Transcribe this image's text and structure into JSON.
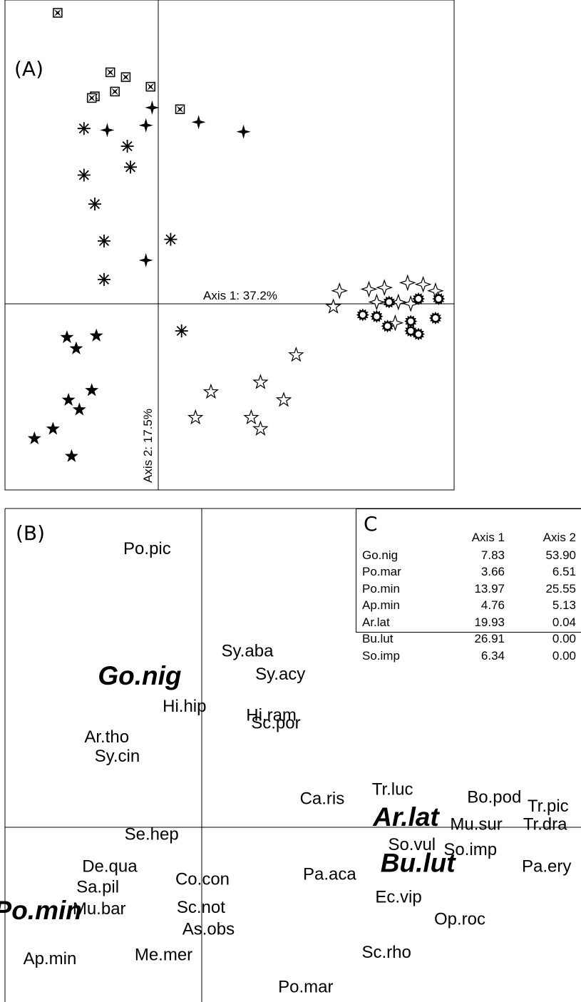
{
  "panel_a": {
    "label": "(A)",
    "axis1_label": "Axis 1: 37.2%",
    "axis2_label": "Axis 2: 17.5%"
  },
  "panel_b": {
    "label": "(B)"
  },
  "panel_c": {
    "label": "C",
    "col_headers": [
      "Axis 1",
      "Axis 2"
    ],
    "rows": [
      {
        "name": "Go.nig",
        "axis1": "7.83",
        "axis2": "53.90"
      },
      {
        "name": "Po.mar",
        "axis1": "3.66",
        "axis2": "6.51"
      },
      {
        "name": "Po.min",
        "axis1": "13.97",
        "axis2": "25.55"
      },
      {
        "name": "Ap.min",
        "axis1": "4.76",
        "axis2": "5.13"
      },
      {
        "name": "Ar.lat",
        "axis1": "19.93",
        "axis2": "0.04"
      },
      {
        "name": "Bu.lut",
        "axis1": "26.91",
        "axis2": "0.00"
      },
      {
        "name": "So.imp",
        "axis1": "6.34",
        "axis2": "0.00"
      }
    ]
  },
  "chart_data": [
    {
      "type": "scatter",
      "panel": "(A)",
      "xlabel": "Axis 1: 37.2%",
      "ylabel": "Axis 2: 17.5%",
      "xlim": [
        -1.0,
        1.9
      ],
      "ylim": [
        -1.2,
        1.85
      ],
      "grid": false,
      "series": [
        {
          "symbol": "cross-box",
          "points": [
            [
              -0.66,
              1.77
            ],
            [
              -0.32,
              1.4
            ],
            [
              -0.22,
              1.37
            ],
            [
              -0.42,
              1.25
            ],
            [
              -0.29,
              1.28
            ],
            [
              -0.44,
              1.24
            ],
            [
              -0.06,
              1.31
            ],
            [
              0.13,
              1.17
            ]
          ]
        },
        {
          "symbol": "four-point-star-filled",
          "points": [
            [
              -0.05,
              1.18
            ],
            [
              -0.09,
              1.07
            ],
            [
              -0.34,
              1.04
            ],
            [
              0.25,
              1.09
            ],
            [
              0.54,
              1.03
            ],
            [
              -0.09,
              0.23
            ]
          ]
        },
        {
          "symbol": "asterisk",
          "points": [
            [
              -0.49,
              1.05
            ],
            [
              -0.21,
              0.94
            ],
            [
              -0.19,
              0.81
            ],
            [
              -0.49,
              0.76
            ],
            [
              -0.42,
              0.58
            ],
            [
              -0.36,
              0.35
            ],
            [
              0.07,
              0.36
            ],
            [
              -0.36,
              0.11
            ],
            [
              0.14,
              -0.21
            ]
          ]
        },
        {
          "symbol": "five-point-star-filled",
          "points": [
            [
              -0.6,
              -0.25
            ],
            [
              -0.54,
              -0.32
            ],
            [
              -0.41,
              -0.24
            ],
            [
              -0.59,
              -0.64
            ],
            [
              -0.52,
              -0.7
            ],
            [
              -0.44,
              -0.58
            ],
            [
              -0.69,
              -0.82
            ],
            [
              -0.81,
              -0.88
            ],
            [
              -0.57,
              -0.99
            ]
          ]
        },
        {
          "symbol": "five-point-star-open",
          "points": [
            [
              1.12,
              -0.06
            ],
            [
              0.88,
              -0.36
            ],
            [
              0.65,
              -0.53
            ],
            [
              0.33,
              -0.59
            ],
            [
              0.23,
              -0.75
            ],
            [
              0.8,
              -0.64
            ],
            [
              0.59,
              -0.75
            ],
            [
              0.65,
              -0.82
            ]
          ]
        },
        {
          "symbol": "four-point-star-open",
          "points": [
            [
              1.16,
              0.04
            ],
            [
              1.35,
              0.05
            ],
            [
              1.45,
              0.06
            ],
            [
              1.6,
              0.09
            ],
            [
              1.7,
              0.08
            ],
            [
              1.78,
              0.04
            ],
            [
              1.4,
              -0.03
            ],
            [
              1.54,
              -0.03
            ],
            [
              1.62,
              -0.04
            ],
            [
              1.52,
              -0.16
            ]
          ]
        },
        {
          "symbol": "sun-ring",
          "points": [
            [
              1.48,
              -0.03
            ],
            [
              1.67,
              -0.01
            ],
            [
              1.8,
              -0.01
            ],
            [
              1.31,
              -0.11
            ],
            [
              1.4,
              -0.12
            ],
            [
              1.62,
              -0.15
            ],
            [
              1.78,
              -0.13
            ],
            [
              1.47,
              -0.18
            ],
            [
              1.62,
              -0.21
            ],
            [
              1.67,
              -0.23
            ]
          ]
        }
      ]
    },
    {
      "type": "scatter",
      "panel": "(B)",
      "xlim": [
        -1.3,
        2.55
      ],
      "ylim": [
        -1.35,
        2.5
      ],
      "grid": false,
      "points": [
        {
          "label": "Po.pic",
          "x": -0.35,
          "y": 2.18,
          "bold": false
        },
        {
          "label": "Sy.aba",
          "x": 0.32,
          "y": 1.38,
          "bold": false
        },
        {
          "label": "Sy.acy",
          "x": 0.54,
          "y": 1.2,
          "bold": false
        },
        {
          "label": "Go.nig",
          "x": -0.4,
          "y": 1.18,
          "bold": true
        },
        {
          "label": "Hi.hip",
          "x": -0.1,
          "y": 0.95,
          "bold": false
        },
        {
          "label": "Hi.ram",
          "x": 0.48,
          "y": 0.88,
          "bold": false
        },
        {
          "label": "Sc.por",
          "x": 0.51,
          "y": 0.82,
          "bold": false
        },
        {
          "label": "Ar.tho",
          "x": -0.62,
          "y": 0.71,
          "bold": false
        },
        {
          "label": "Sy.cin",
          "x": -0.55,
          "y": 0.56,
          "bold": false
        },
        {
          "label": "Ca.ris",
          "x": 0.82,
          "y": 0.23,
          "bold": false
        },
        {
          "label": "Tr.luc",
          "x": 1.29,
          "y": 0.3,
          "bold": false
        },
        {
          "label": "Bo.pod",
          "x": 1.97,
          "y": 0.24,
          "bold": false
        },
        {
          "label": "Tr.pic",
          "x": 2.33,
          "y": 0.17,
          "bold": false
        },
        {
          "label": "Ar.lat",
          "x": 1.38,
          "y": 0.08,
          "bold": true
        },
        {
          "label": "Mu.sur",
          "x": 1.85,
          "y": 0.03,
          "bold": false
        },
        {
          "label": "Tr.dra",
          "x": 2.31,
          "y": 0.03,
          "bold": false
        },
        {
          "label": "Se.hep",
          "x": -0.32,
          "y": -0.05,
          "bold": false
        },
        {
          "label": "So.vul",
          "x": 1.42,
          "y": -0.13,
          "bold": false
        },
        {
          "label": "So.imp",
          "x": 1.81,
          "y": -0.17,
          "bold": false
        },
        {
          "label": "Bu.lut",
          "x": 1.46,
          "y": -0.28,
          "bold": true
        },
        {
          "label": "Pa.ery",
          "x": 2.32,
          "y": -0.3,
          "bold": false
        },
        {
          "label": "De.qua",
          "x": -0.6,
          "y": -0.3,
          "bold": false
        },
        {
          "label": "Co.con",
          "x": 0.02,
          "y": -0.4,
          "bold": false
        },
        {
          "label": "Pa.aca",
          "x": 0.87,
          "y": -0.36,
          "bold": false
        },
        {
          "label": "Sa.pil",
          "x": -0.68,
          "y": -0.46,
          "bold": false
        },
        {
          "label": "Ec.vip",
          "x": 1.33,
          "y": -0.54,
          "bold": false
        },
        {
          "label": "Po.min",
          "x": -1.08,
          "y": -0.65,
          "bold": true
        },
        {
          "label": "Mu.bar",
          "x": -0.67,
          "y": -0.63,
          "bold": false
        },
        {
          "label": "Sc.not",
          "x": 0.01,
          "y": -0.62,
          "bold": false
        },
        {
          "label": "Op.roc",
          "x": 1.74,
          "y": -0.71,
          "bold": false
        },
        {
          "label": "As.obs",
          "x": 0.06,
          "y": -0.79,
          "bold": false
        },
        {
          "label": "Ap.min",
          "x": -1.0,
          "y": -1.02,
          "bold": false
        },
        {
          "label": "Me.mer",
          "x": -0.24,
          "y": -0.99,
          "bold": false
        },
        {
          "label": "Sc.rho",
          "x": 1.25,
          "y": -0.97,
          "bold": false
        },
        {
          "label": "Po.mar",
          "x": 0.71,
          "y": -1.24,
          "bold": false
        }
      ]
    }
  ]
}
